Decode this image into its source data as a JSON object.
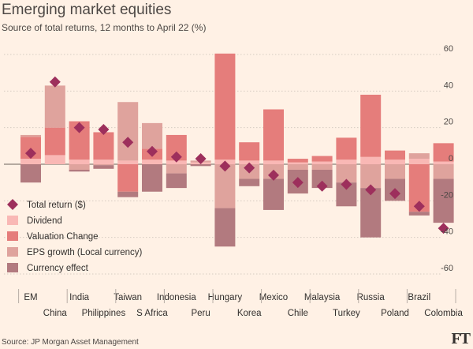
{
  "colors": {
    "background": "#fff1e5",
    "dividend": "#f9b8b5",
    "valuation": "#e57d7b",
    "eps": "#dfa39d",
    "currency": "#b27a7f",
    "marker": "#9d2f5c",
    "grid": "#d6cbc1"
  },
  "chart_data": {
    "type": "bar",
    "title": "Emerging market equities",
    "subtitle": "Source of total returns, 12 months to April 22 (%)",
    "source": "Source: JP Morgan Asset Management",
    "ylim": [
      -60,
      60
    ],
    "yticks": [
      60,
      40,
      20,
      0,
      -20,
      -40,
      -60
    ],
    "categories": [
      "EM",
      "China",
      "India",
      "Philippines",
      "Taiwan",
      "S Africa",
      "Indonesia",
      "Peru",
      "Hungary",
      "Korea",
      "Mexico",
      "Chile",
      "Malaysia",
      "Turkey",
      "Russia",
      "Poland",
      "Brazil",
      "Colombia"
    ],
    "legend": [
      "Total return ($)",
      "Dividend",
      "Valuation Change",
      "EPS growth (Local currency)",
      "Currency effect"
    ],
    "series": [
      {
        "name": "Dividend",
        "values": [
          3,
          5,
          2.5,
          2.5,
          2,
          2.5,
          2,
          1,
          2.5,
          2,
          2,
          1,
          1.5,
          2.5,
          4,
          2.5,
          3,
          1.5
        ]
      },
      {
        "name": "Valuation Change",
        "values": [
          12,
          15,
          21,
          15,
          -15,
          6,
          14,
          0,
          58,
          10,
          28,
          2,
          3,
          12,
          34,
          5,
          -26,
          10
        ]
      },
      {
        "name": "EPS growth (Local currency)",
        "values": [
          1,
          23,
          -3,
          -0.5,
          32,
          14,
          -5,
          1,
          -24,
          -8,
          -8,
          -3,
          -3,
          -10,
          -13,
          -8,
          3,
          -8
        ]
      },
      {
        "name": "Currency effect",
        "values": [
          -10,
          0,
          -1,
          -2,
          -3,
          -15,
          -8,
          -1,
          -21,
          -4,
          -17,
          -13,
          -10,
          -13,
          -27,
          -12,
          -2,
          -24
        ]
      }
    ],
    "total_return": [
      6,
      45,
      20,
      19,
      12,
      7,
      4,
      3,
      -1,
      -2,
      -6,
      -10,
      -12,
      -11,
      -14,
      -16,
      -23,
      -35
    ]
  }
}
